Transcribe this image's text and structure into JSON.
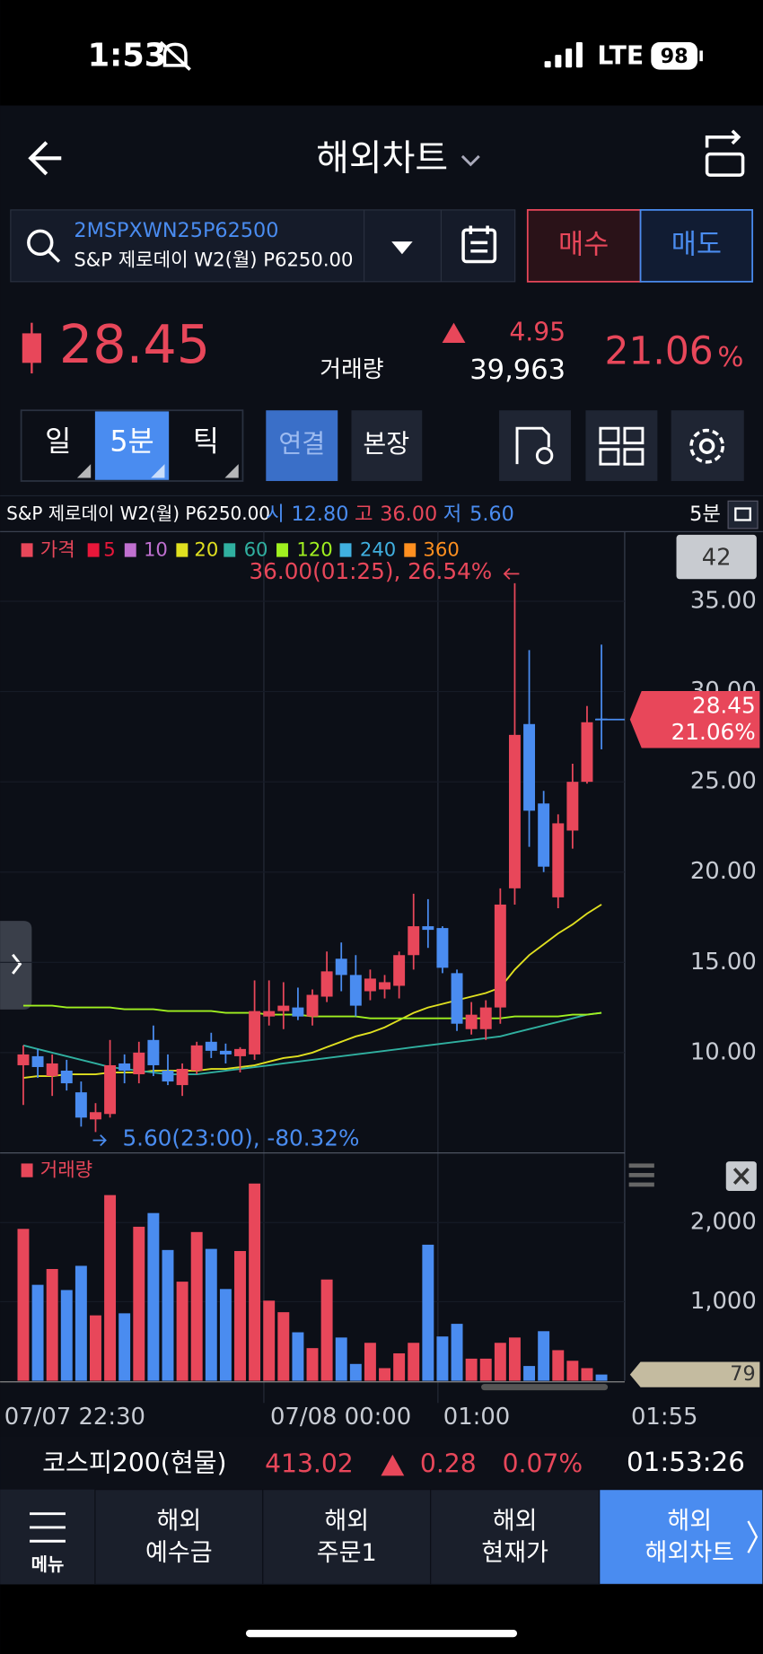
{
  "status": {
    "time": "1:53",
    "network": "LTE",
    "battery": "98"
  },
  "header": {
    "title": "해외차트"
  },
  "search": {
    "code": "2MSPXWN25P62500",
    "name": "S&P 제로데이 W2(월) P6250.00",
    "buy": "매수",
    "sell": "매도"
  },
  "quote": {
    "price": "28.45",
    "volume_label": "거래량",
    "change": "4.95",
    "volume": "39,963",
    "change_pct": "21.06",
    "pct_unit": "%"
  },
  "tabs": [
    "일",
    "5분",
    "틱"
  ],
  "buttons": [
    "연결",
    "본장"
  ],
  "info": {
    "name": "S&P 제로데이 W2(월) P6250.00",
    "open_label": "시",
    "open": "12.80",
    "high_label": "고",
    "high": "36.00",
    "low_label": "저",
    "low": "5.60",
    "period": "5분",
    "count": "42"
  },
  "chart_data": [
    {
      "type": "candlestick",
      "ylim": [
        4.5,
        38.8
      ],
      "yticks": [
        {
          "value": 10,
          "label": "10.00"
        },
        {
          "value": 15,
          "label": "15.00"
        },
        {
          "value": 20,
          "label": "20.00"
        },
        {
          "value": 25,
          "label": "25.00"
        },
        {
          "value": 30,
          "label": "30.00"
        },
        {
          "value": 35,
          "label": "35.00"
        }
      ],
      "up_color": "#e8475a",
      "down_color": "#4a8cf0",
      "candles": {
        "open": [
          9.3,
          9.8,
          8.7,
          9.0,
          7.8,
          6.3,
          6.6,
          9.4,
          8.8,
          10.7,
          9.0,
          8.2,
          9.0,
          10.6,
          10.1,
          9.8,
          9.9,
          12.0,
          12.3,
          12.5,
          12.0,
          13.1,
          15.2,
          14.3,
          13.4,
          13.5,
          13.7,
          15.4,
          17.0,
          16.9,
          14.4,
          11.3,
          11.3,
          12.5,
          19.1,
          28.2,
          23.8,
          18.6,
          22.3,
          25.0,
          28.5
        ],
        "high": [
          10.4,
          10.2,
          9.9,
          9.6,
          8.4,
          7.2,
          10.7,
          9.9,
          10.6,
          11.5,
          9.9,
          9.4,
          10.6,
          11.1,
          10.5,
          10.3,
          14.0,
          14.0,
          13.9,
          13.6,
          13.5,
          15.6,
          16.1,
          15.4,
          14.6,
          14.3,
          15.6,
          18.8,
          18.5,
          17.0,
          14.6,
          12.8,
          12.9,
          19.1,
          36.0,
          32.3,
          24.5,
          23.2,
          26.0,
          29.2,
          32.6
        ],
        "low": [
          7.1,
          8.6,
          7.6,
          7.9,
          5.9,
          5.6,
          6.4,
          8.3,
          8.3,
          8.7,
          8.2,
          7.6,
          8.8,
          9.7,
          9.4,
          8.9,
          9.6,
          11.5,
          11.3,
          11.8,
          11.5,
          12.8,
          13.4,
          12.0,
          12.9,
          13.0,
          13.0,
          14.6,
          15.8,
          14.4,
          11.2,
          11.0,
          10.7,
          11.6,
          18.2,
          21.4,
          20.0,
          18.0,
          21.3,
          24.9,
          26.8
        ],
        "close": [
          9.9,
          9.2,
          9.4,
          8.3,
          6.4,
          6.7,
          9.3,
          9.0,
          10.0,
          9.3,
          8.4,
          9.1,
          10.4,
          10.1,
          9.9,
          10.2,
          12.3,
          12.3,
          12.6,
          12.0,
          13.2,
          14.5,
          14.3,
          12.6,
          14.1,
          13.9,
          15.4,
          17.0,
          16.8,
          14.7,
          11.6,
          12.1,
          12.5,
          18.2,
          27.6,
          23.4,
          20.3,
          22.7,
          25.0,
          28.3,
          28.45
        ]
      },
      "series": [
        {
          "name": "가격",
          "color": "#e8475a"
        },
        {
          "name": "5",
          "color": "#e8173a"
        },
        {
          "name": "10",
          "color": "#c070d0"
        },
        {
          "name": "20",
          "color": "#e0e020",
          "values": [
            8.6,
            8.7,
            8.7,
            8.8,
            8.8,
            8.8,
            8.9,
            8.9,
            8.9,
            9.0,
            9.0,
            9.0,
            9.0,
            9.1,
            9.1,
            9.2,
            9.3,
            9.5,
            9.7,
            9.8,
            10.0,
            10.3,
            10.6,
            10.9,
            11.1,
            11.4,
            11.8,
            12.2,
            12.5,
            12.7,
            12.9,
            13.1,
            13.3,
            13.6,
            14.6,
            15.4,
            16.0,
            16.6,
            17.1,
            17.7,
            18.2
          ]
        },
        {
          "name": "60",
          "color": "#30b0a0",
          "values": [
            10.4,
            10.2,
            10.0,
            9.8,
            9.6,
            9.4,
            9.2,
            9.1,
            9.0,
            8.9,
            8.8,
            8.8,
            8.8,
            8.9,
            9.0,
            9.1,
            9.2,
            9.3,
            9.4,
            9.5,
            9.6,
            9.7,
            9.8,
            9.9,
            10.0,
            10.1,
            10.2,
            10.3,
            10.4,
            10.5,
            10.6,
            10.7,
            10.8,
            10.9,
            11.1,
            11.3,
            11.5,
            11.7,
            11.9,
            12.1,
            12.2
          ]
        },
        {
          "name": "120",
          "color": "#a0f020",
          "values": [
            12.6,
            12.6,
            12.6,
            12.5,
            12.5,
            12.5,
            12.5,
            12.4,
            12.4,
            12.4,
            12.3,
            12.3,
            12.3,
            12.3,
            12.2,
            12.2,
            12.2,
            12.1,
            12.1,
            12.1,
            12.0,
            12.0,
            12.0,
            12.0,
            11.9,
            11.9,
            11.9,
            11.9,
            11.9,
            11.9,
            11.9,
            11.9,
            11.9,
            11.9,
            12.0,
            12.0,
            12.0,
            12.0,
            12.1,
            12.1,
            12.2
          ]
        },
        {
          "name": "240",
          "color": "#40b0e0"
        },
        {
          "name": "360",
          "color": "#ff9020"
        }
      ],
      "annotations": [
        "36.00(01:25), 26.54%",
        "5.60(23:00), -80.32%"
      ],
      "last_labels": [
        "28.45",
        "21.06%"
      ]
    },
    {
      "type": "bar",
      "title": "거래량",
      "color": "#e8475a",
      "values": [
        1920,
        1213,
        1413,
        1147,
        1453,
        827,
        2347,
        853,
        1947,
        2120,
        1653,
        1253,
        1880,
        1667,
        1160,
        1640,
        2493,
        1013,
        867,
        613,
        413,
        1280,
        547,
        213,
        480,
        160,
        347,
        480,
        1720,
        560,
        720,
        280,
        280,
        480,
        547,
        187,
        627,
        387,
        253,
        160,
        79
      ],
      "ylim": [
        0,
        2853
      ],
      "yticks": [
        {
          "value": 1000,
          "label": "1,000"
        },
        {
          "value": 2000,
          "label": "2,000"
        }
      ],
      "last_label": "79",
      "x_labels": [
        "07/07 22:30",
        "07/08 00:00",
        "01:00",
        "01:55"
      ]
    }
  ],
  "ticker": {
    "name": "코스피200(현물)",
    "price": "413.02",
    "change": "0.28",
    "change_pct": "0.07%",
    "time": "01:53:26"
  },
  "nav": {
    "menu": "메뉴",
    "items": [
      [
        "해외",
        "예수금"
      ],
      [
        "해외",
        "주문1"
      ],
      [
        "해외",
        "현재가"
      ],
      [
        "해외",
        "해외차트"
      ]
    ]
  }
}
